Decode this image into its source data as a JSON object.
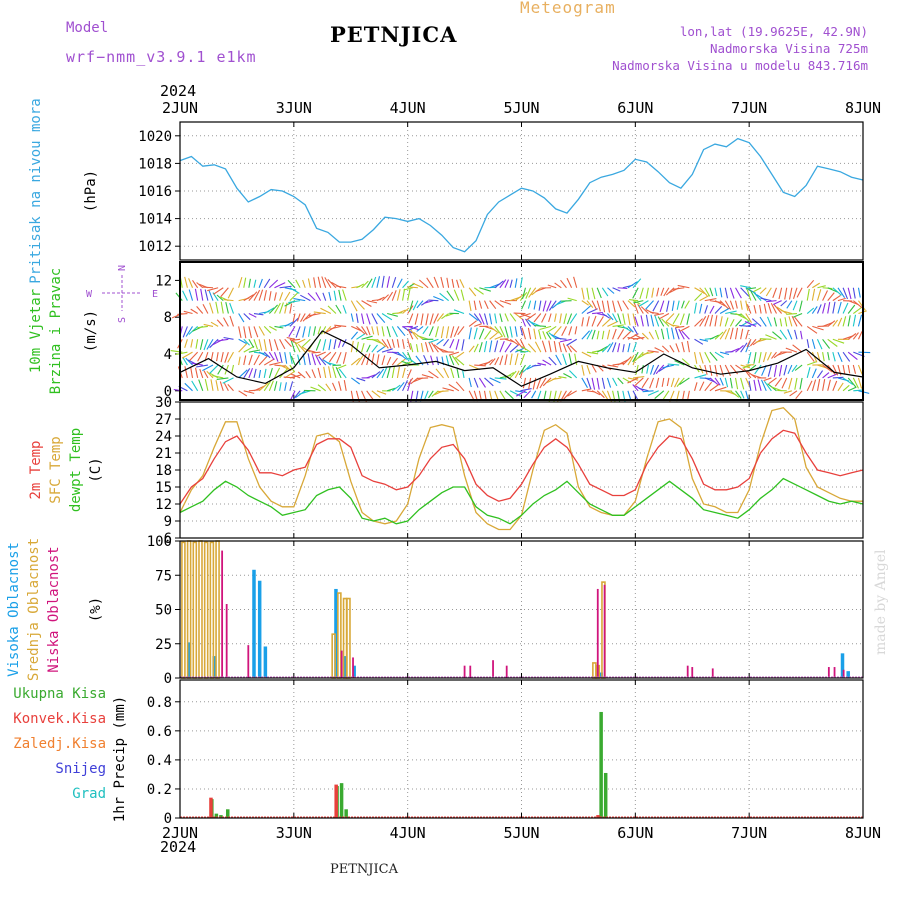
{
  "header": {
    "model_label": "Model",
    "model_name": "wrf−nmm_v3.9.1  e1km",
    "station": "PETNJICA",
    "meteogram_label": "Meteogram",
    "lonlat": "lon,lat (19.9625E, 42.9N)",
    "elevation": "Nadmorska Visina 725m",
    "model_elevation": "Nadmorska Visina u modelu 843.716m",
    "credit": "made by Angel",
    "footer_station": "PETNJICA"
  },
  "time_axis": {
    "year": "2024",
    "ticks": [
      "2JUN",
      "3JUN",
      "4JUN",
      "5JUN",
      "6JUN",
      "7JUN",
      "8JUN"
    ]
  },
  "colors": {
    "pressure": "#3aa8e0",
    "temp2m": "#e8403c",
    "sfc_temp": "#d8a838",
    "dewpt": "#30c020",
    "cloud_high": "#1aa0e8",
    "cloud_mid": "#d8a838",
    "cloud_low": "#d0147c",
    "precip_total": "#3aaa30",
    "precip_conv": "#e8403c",
    "precip_snow": "#4040d8",
    "precip_grad": "#20c0c0",
    "precip_zaledj": "#f08030",
    "grid": "#999999"
  },
  "chart_data": [
    {
      "type": "line",
      "panel": "pressure",
      "ylabel": "Pritisak na nivou mora",
      "unit": "(hPa)",
      "ylim": [
        1011,
        1021
      ],
      "yticks": [
        1012,
        1014,
        1016,
        1018,
        1020
      ],
      "x_days": [
        0,
        0.1,
        0.2,
        0.3,
        0.4,
        0.5,
        0.6,
        0.7,
        0.8,
        0.9,
        1.0,
        1.1,
        1.2,
        1.3,
        1.4,
        1.5,
        1.6,
        1.7,
        1.8,
        1.9,
        2.0,
        2.1,
        2.2,
        2.3,
        2.4,
        2.5,
        2.6,
        2.7,
        2.8,
        2.9,
        3.0,
        3.1,
        3.2,
        3.3,
        3.4,
        3.5,
        3.6,
        3.7,
        3.8,
        3.9,
        4.0,
        4.1,
        4.2,
        4.3,
        4.4,
        4.5,
        4.6,
        4.7,
        4.8,
        4.9,
        5.0,
        5.1,
        5.2,
        5.3,
        5.4,
        5.5,
        5.6,
        5.7,
        5.8,
        5.9,
        6.0
      ],
      "series": [
        {
          "values": [
            1018.2,
            1018.5,
            1017.8,
            1017.9,
            1017.6,
            1016.2,
            1015.2,
            1015.6,
            1016.1,
            1016.0,
            1015.6,
            1015.0,
            1013.3,
            1013.0,
            1012.3,
            1012.3,
            1012.5,
            1013.2,
            1014.1,
            1014.0,
            1013.8,
            1014.0,
            1013.5,
            1012.8,
            1011.9,
            1011.6,
            1012.4,
            1014.3,
            1015.2,
            1015.7,
            1016.2,
            1016.0,
            1015.5,
            1014.7,
            1014.4,
            1015.4,
            1016.6,
            1017.0,
            1017.2,
            1017.5,
            1018.3,
            1018.1,
            1017.4,
            1016.6,
            1016.2,
            1017.2,
            1019.0,
            1019.4,
            1019.2,
            1019.8,
            1019.5,
            1018.5,
            1017.2,
            1015.9,
            1015.6,
            1016.4,
            1017.8,
            1017.6,
            1017.4,
            1017.0,
            1016.8
          ]
        }
      ]
    },
    {
      "type": "barb",
      "panel": "wind",
      "ylabel": "10m Vjetar",
      "ylabel2": "Brzina i Pravac",
      "unit": "(m/s)",
      "ylim": [
        -1,
        14
      ],
      "yticks": [
        0,
        4,
        8,
        12
      ],
      "compass": {
        "n": "N",
        "s": "S",
        "e": "E",
        "w": "W"
      },
      "x_days": [
        0,
        0.25,
        0.5,
        0.75,
        1.0,
        1.25,
        1.5,
        1.75,
        2.0,
        2.25,
        2.5,
        2.75,
        3.0,
        3.25,
        3.5,
        3.75,
        4.0,
        4.25,
        4.5,
        4.75,
        5.0,
        5.25,
        5.5,
        5.75,
        6.0
      ],
      "series": [
        {
          "name": "speed",
          "values": [
            2.0,
            3.5,
            1.5,
            0.8,
            2.5,
            6.5,
            5.0,
            2.5,
            2.8,
            3.2,
            2.2,
            2.5,
            0.5,
            1.8,
            3.2,
            2.5,
            2.0,
            4.0,
            2.5,
            1.8,
            2.2,
            3.0,
            4.5,
            2.0,
            1.5
          ]
        }
      ]
    },
    {
      "type": "line",
      "panel": "temperature",
      "ylabels": [
        "2m Temp",
        "SFC Temp",
        "dewpt Temp"
      ],
      "unit": "(C)",
      "ylim": [
        6,
        30
      ],
      "yticks": [
        6,
        9,
        12,
        15,
        18,
        21,
        24,
        27,
        30
      ],
      "x_days": [
        0,
        0.1,
        0.2,
        0.3,
        0.4,
        0.5,
        0.6,
        0.7,
        0.8,
        0.9,
        1.0,
        1.1,
        1.2,
        1.3,
        1.4,
        1.5,
        1.6,
        1.7,
        1.8,
        1.9,
        2.0,
        2.1,
        2.2,
        2.3,
        2.4,
        2.5,
        2.6,
        2.7,
        2.8,
        2.9,
        3.0,
        3.1,
        3.2,
        3.3,
        3.4,
        3.5,
        3.6,
        3.7,
        3.8,
        3.9,
        4.0,
        4.1,
        4.2,
        4.3,
        4.4,
        4.5,
        4.6,
        4.7,
        4.8,
        4.9,
        5.0,
        5.1,
        5.2,
        5.3,
        5.4,
        5.5,
        5.6,
        5.7,
        5.8,
        5.9,
        6.0
      ],
      "series": [
        {
          "name": "2m Temp",
          "values": [
            12.0,
            15.0,
            16.5,
            20.0,
            23.0,
            24.0,
            21.5,
            17.5,
            17.5,
            17.0,
            18.0,
            18.5,
            22.5,
            23.5,
            23.5,
            22.0,
            17.0,
            16.0,
            15.5,
            14.5,
            15.0,
            17.0,
            20.0,
            22.0,
            22.5,
            20.0,
            15.5,
            13.5,
            12.5,
            13.0,
            15.5,
            19.0,
            22.0,
            23.5,
            22.0,
            19.0,
            15.5,
            14.5,
            13.5,
            13.5,
            14.5,
            19.0,
            22.0,
            24.0,
            23.5,
            20.0,
            15.5,
            14.5,
            14.5,
            15.0,
            16.5,
            21.0,
            23.5,
            25.0,
            24.5,
            21.0,
            18.0,
            17.5,
            17.0,
            17.5,
            18.0
          ]
        },
        {
          "name": "SFC Temp",
          "values": [
            10.5,
            14.5,
            17.0,
            22.0,
            26.5,
            26.5,
            20.0,
            15.0,
            12.5,
            11.5,
            11.5,
            17.0,
            24.0,
            24.5,
            23.0,
            16.0,
            10.5,
            9.0,
            8.5,
            9.0,
            12.0,
            20.0,
            25.5,
            26.0,
            25.5,
            17.0,
            10.5,
            8.5,
            7.5,
            7.5,
            10.0,
            18.0,
            25.0,
            26.0,
            24.5,
            15.0,
            11.5,
            10.5,
            10.0,
            10.0,
            12.5,
            20.0,
            26.5,
            27.0,
            25.5,
            16.5,
            12.0,
            11.5,
            10.5,
            10.5,
            14.5,
            22.5,
            28.5,
            29.0,
            27.0,
            18.5,
            15.0,
            14.0,
            13.0,
            12.5,
            12.5
          ]
        },
        {
          "name": "dewpt Temp",
          "values": [
            10.5,
            11.5,
            12.5,
            14.5,
            16.0,
            15.0,
            13.5,
            12.5,
            11.5,
            10.0,
            10.5,
            11.0,
            13.5,
            14.5,
            15.0,
            13.0,
            9.5,
            9.0,
            9.5,
            8.5,
            9.0,
            11.0,
            12.5,
            14.0,
            15.0,
            15.0,
            11.5,
            10.0,
            9.5,
            8.5,
            10.0,
            12.0,
            13.5,
            14.5,
            16.0,
            14.0,
            12.0,
            11.0,
            10.0,
            10.0,
            11.5,
            13.0,
            14.5,
            16.0,
            14.5,
            13.0,
            11.0,
            10.5,
            10.0,
            9.5,
            11.0,
            13.0,
            14.5,
            16.5,
            15.5,
            14.5,
            13.5,
            12.5,
            12.0,
            12.5,
            12.0
          ]
        }
      ]
    },
    {
      "type": "bar",
      "panel": "cloud",
      "ylabels": [
        "Visoka Oblacnost",
        "Srednja Oblacnost",
        "Niska Oblacnost"
      ],
      "unit": "(%)",
      "ylim": [
        0,
        100
      ],
      "yticks": [
        0,
        25,
        50,
        75,
        100
      ],
      "series": [
        {
          "name": "Visoka Oblacnost",
          "x_days": [
            0.08,
            0.3,
            0.65,
            0.7,
            0.75,
            1.37,
            1.45,
            1.53,
            3.7,
            5.82,
            5.87
          ],
          "values": [
            26,
            16,
            79,
            71,
            23,
            65,
            16,
            9,
            4,
            18,
            5
          ]
        },
        {
          "name": "Srednja Oblacnost",
          "x_days": [
            0.03,
            0.08,
            0.13,
            0.18,
            0.23,
            0.28,
            0.33,
            1.35,
            1.4,
            1.45,
            1.48,
            3.64,
            3.67,
            3.72
          ],
          "values": [
            99,
            100,
            99,
            100,
            99,
            99,
            100,
            32,
            62,
            58,
            58,
            11,
            9,
            70
          ]
        },
        {
          "name": "Niska Oblacnost",
          "x_days": [
            0.37,
            0.41,
            0.6,
            1.42,
            1.52,
            2.5,
            2.55,
            2.75,
            2.87,
            3.67,
            3.73,
            4.46,
            4.5,
            4.68,
            5.7,
            5.75,
            5.83
          ],
          "values": [
            93,
            54,
            24,
            20,
            15,
            9,
            9,
            13,
            9,
            65,
            68,
            9,
            8,
            7,
            8,
            8,
            6
          ]
        }
      ]
    },
    {
      "type": "bar",
      "panel": "precip",
      "ylabels": [
        "Ukupna Kisa",
        "Konvek.Kisa",
        "Zaledj.Kisa",
        "Snijeg",
        "Grad"
      ],
      "unit": "1hr Precip (mm)",
      "ylim": [
        0,
        0.95
      ],
      "yticks": [
        0,
        0.2,
        0.4,
        0.6,
        0.8
      ],
      "series": [
        {
          "name": "Ukupna Kisa",
          "x_days": [
            0.28,
            0.32,
            0.36,
            0.42,
            1.38,
            1.42,
            1.46,
            3.7,
            3.74
          ],
          "values": [
            0.13,
            0.03,
            0.02,
            0.06,
            0.22,
            0.24,
            0.06,
            0.73,
            0.31
          ]
        },
        {
          "name": "Konvek.Kisa",
          "x_days": [
            0.29,
            1.39,
            3.69
          ],
          "values": [
            0.14,
            0.23,
            0.02
          ]
        }
      ]
    }
  ]
}
